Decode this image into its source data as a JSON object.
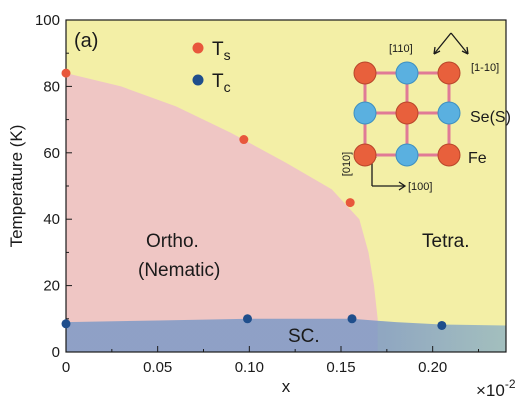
{
  "chart_data": {
    "type": "scatter",
    "panel_label": "(a)",
    "xlabel": "x",
    "ylabel": "Temperature (K)",
    "x_multiplier": "×10",
    "x_multiplier_exp": "-2",
    "xlim": [
      0,
      0.24
    ],
    "ylim": [
      0,
      100
    ],
    "xticks": [
      0,
      0.05,
      0.1,
      0.15,
      0.2
    ],
    "xtick_labels": [
      "0",
      "0.05",
      "0.10",
      "0.15",
      "0.20"
    ],
    "yticks": [
      0,
      20,
      40,
      60,
      80,
      100
    ],
    "ytick_labels": [
      "0",
      "20",
      "40",
      "60",
      "80",
      "100"
    ],
    "grid": false,
    "legend_position": "top",
    "series": [
      {
        "name": "T",
        "subscript": "s",
        "color": "#e8573c",
        "points": [
          {
            "x": 0.0,
            "y": 84
          },
          {
            "x": 0.097,
            "y": 64
          },
          {
            "x": 0.155,
            "y": 45
          }
        ]
      },
      {
        "name": "T",
        "subscript": "c",
        "color": "#1f4e8c",
        "points": [
          {
            "x": 0.0,
            "y": 8.5
          },
          {
            "x": 0.099,
            "y": 10
          },
          {
            "x": 0.156,
            "y": 10
          },
          {
            "x": 0.205,
            "y": 8
          }
        ]
      }
    ],
    "regions": {
      "ortho_line1": "Ortho.",
      "ortho_line2": "(Nematic)",
      "tetra": "Tetra.",
      "sc": "SC."
    },
    "region_colors": {
      "tetra": "#f3efa6",
      "ortho": "#efc6c4",
      "sc": "#7e9ac6"
    },
    "inset": {
      "direction_110": "[110]",
      "direction_1_10": "[1-10]",
      "direction_010": "[010]",
      "direction_100": "[100]",
      "label_se": "Se(S)",
      "label_fe": "Fe",
      "fe_color": "#e8603c",
      "se_color": "#5ab0e0",
      "bond_color": "#e07a96"
    }
  }
}
